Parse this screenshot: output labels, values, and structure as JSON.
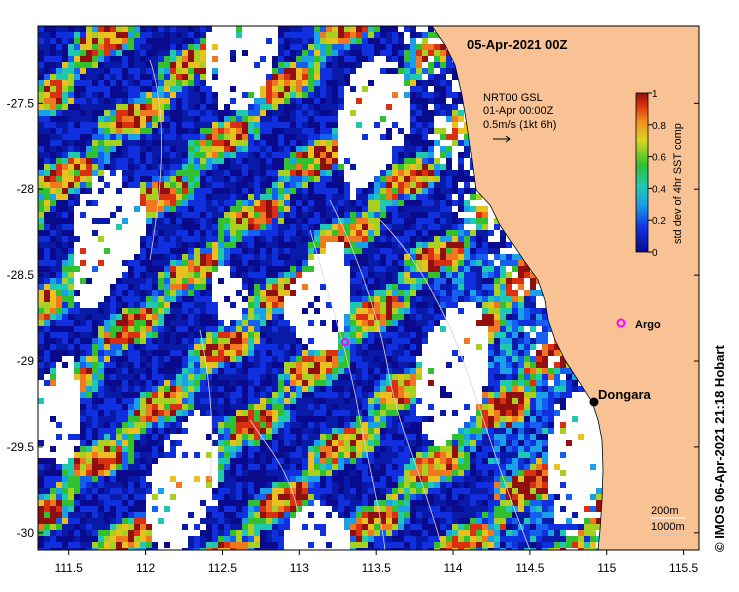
{
  "title": "05-Apr-2021 00Z",
  "map": {
    "lon_range": [
      111.3,
      115.6
    ],
    "lat_range": [
      -30.1,
      -27.05
    ],
    "lon_ticks": [
      "111.5",
      "112",
      "112.5",
      "113",
      "113.5",
      "114",
      "114.5",
      "115",
      "115.5"
    ],
    "lat_ticks": [
      "-27.5",
      "-28",
      "-28.5",
      "-29",
      "-29.5",
      "-30"
    ],
    "land_color": "#f9c294"
  },
  "current_legend": {
    "line1": "NRT00 GSL",
    "line2": "01-Apr 00:00Z",
    "line3": "0.5m/s (1kt 6h)"
  },
  "colorbar": {
    "label": "std dev of 4hr SST comp",
    "ticks": [
      "1",
      "0.8",
      "0.6",
      "0.4",
      "0.2",
      "0"
    ],
    "min": 0,
    "max": 1
  },
  "places": {
    "argo": {
      "label": "Argo",
      "lon": 115.14,
      "lat": -28.85,
      "color": "#ff00ff"
    },
    "argo2": {
      "lon": 113.32,
      "lat": -28.9,
      "color": "#ff00ff"
    },
    "dongara": {
      "label": "Dongara",
      "lon": 114.93,
      "lat": -29.25
    }
  },
  "scale": {
    "line1": "200m",
    "line2": "1000m"
  },
  "credit": "© IMOS 06-Apr-2021 21:18 Hobart"
}
